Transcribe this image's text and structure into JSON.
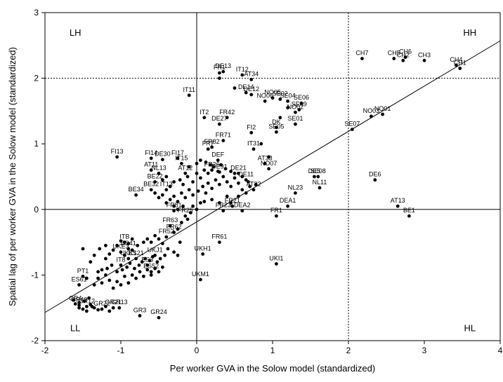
{
  "chart_data": {
    "type": "scatter",
    "xlabel": "Per worker GVA in the Solow model (standardized)",
    "ylabel": "Spatial lag of per worker GVA in the Solow model (standardized)",
    "xlim": [
      -2,
      4
    ],
    "ylim": [
      -2,
      3
    ],
    "xticks": [
      -2,
      -1,
      0,
      1,
      2,
      3,
      4
    ],
    "yticks": [
      -2,
      -1,
      0,
      1,
      2,
      3
    ],
    "grid": false,
    "reference_lines": {
      "x_solid": 0,
      "y_solid": 0,
      "x_dotted": 2,
      "y_dotted": 2
    },
    "regression_line": {
      "x": [
        -2,
        4
      ],
      "y": [
        -1.57,
        2.57
      ]
    },
    "quadrant_labels": [
      {
        "text": "LH",
        "x": -1.6,
        "y": 2.7
      },
      {
        "text": "HH",
        "x": 3.6,
        "y": 2.7
      },
      {
        "text": "LL",
        "x": -1.6,
        "y": -1.8
      },
      {
        "text": "HL",
        "x": 3.6,
        "y": -1.8
      }
    ],
    "labeled_points": [
      {
        "label": "CH7",
        "x": 2.18,
        "y": 2.3
      },
      {
        "label": "CH5",
        "x": 2.6,
        "y": 2.3
      },
      {
        "label": "CH6",
        "x": 2.75,
        "y": 2.32
      },
      {
        "label": "CH2",
        "x": 2.72,
        "y": 2.27
      },
      {
        "label": "CH3",
        "x": 3.0,
        "y": 2.27
      },
      {
        "label": "CH4",
        "x": 3.42,
        "y": 2.2
      },
      {
        "label": "CH1",
        "x": 3.47,
        "y": 2.15
      },
      {
        "label": "FR1",
        "x": 1.05,
        "y": -0.1
      },
      {
        "label": "UKI1",
        "x": 1.05,
        "y": -0.83
      },
      {
        "label": "BE1",
        "x": 2.8,
        "y": -0.1
      },
      {
        "label": "AT13",
        "x": 2.65,
        "y": 0.05
      },
      {
        "label": "DE6",
        "x": 2.35,
        "y": 0.45
      },
      {
        "label": "NO01",
        "x": 2.45,
        "y": 1.45
      },
      {
        "label": "NO03",
        "x": 2.3,
        "y": 1.42
      },
      {
        "label": "SE07",
        "x": 2.05,
        "y": 1.22
      },
      {
        "label": "NL23",
        "x": 1.3,
        "y": 0.25
      },
      {
        "label": "NL11",
        "x": 1.62,
        "y": 0.33
      },
      {
        "label": "DE5",
        "x": 1.55,
        "y": 0.5
      },
      {
        "label": "SE08",
        "x": 1.6,
        "y": 0.5
      },
      {
        "label": "DEA1",
        "x": 1.2,
        "y": 0.05
      },
      {
        "label": "DEA2",
        "x": 0.6,
        "y": -0.02
      },
      {
        "label": "FR23",
        "x": 0.35,
        "y": -0.02
      },
      {
        "label": "FR21",
        "x": 0.47,
        "y": 0.05
      },
      {
        "label": "FR61",
        "x": 0.3,
        "y": -0.5
      },
      {
        "label": "UKH1",
        "x": 0.08,
        "y": -0.68
      },
      {
        "label": "UKM1",
        "x": 0.05,
        "y": -1.07
      },
      {
        "label": "GR3",
        "x": -0.75,
        "y": -1.62
      },
      {
        "label": "GR24",
        "x": -0.5,
        "y": -1.65
      },
      {
        "label": "GR13",
        "x": -1.02,
        "y": -1.5
      },
      {
        "label": "GR22",
        "x": -1.25,
        "y": -1.52
      },
      {
        "label": "GR21",
        "x": -1.1,
        "y": -1.5
      },
      {
        "label": "GR4",
        "x": -1.6,
        "y": -1.44
      },
      {
        "label": "GR43",
        "x": -1.55,
        "y": -1.46
      },
      {
        "label": "GR12",
        "x": -1.45,
        "y": -1.48
      },
      {
        "label": "ES61",
        "x": -1.55,
        "y": -1.15
      },
      {
        "label": "PT1",
        "x": -1.5,
        "y": -1.02
      },
      {
        "label": "IT8",
        "x": -1.0,
        "y": -0.85
      },
      {
        "label": "ITB",
        "x": -0.95,
        "y": -0.5
      },
      {
        "label": "ES41",
        "x": -0.9,
        "y": -0.6
      },
      {
        "label": "UKE3",
        "x": -1.0,
        "y": -0.65
      },
      {
        "label": "FR52",
        "x": -0.4,
        "y": -0.42
      },
      {
        "label": "FR62",
        "x": -0.3,
        "y": -0.35
      },
      {
        "label": "FR63",
        "x": -0.35,
        "y": -0.25
      },
      {
        "label": "FR81",
        "x": -0.3,
        "y": -0.02
      },
      {
        "label": "FR25",
        "x": -0.15,
        "y": -0.1
      },
      {
        "label": "BE34",
        "x": -0.8,
        "y": 0.22
      },
      {
        "label": "BE32",
        "x": -0.6,
        "y": 0.3
      },
      {
        "label": "BE22",
        "x": -0.55,
        "y": 0.42
      },
      {
        "label": "NL13",
        "x": -0.5,
        "y": 0.55
      },
      {
        "label": "AT11",
        "x": -0.6,
        "y": 0.6
      },
      {
        "label": "AT12",
        "x": -0.15,
        "y": 0.55
      },
      {
        "label": "FI13",
        "x": -1.05,
        "y": 0.8
      },
      {
        "label": "FI14",
        "x": -0.6,
        "y": 0.78
      },
      {
        "label": "DE30",
        "x": -0.45,
        "y": 0.76
      },
      {
        "label": "FI17",
        "x": -0.25,
        "y": 0.78
      },
      {
        "label": "IT15",
        "x": -0.2,
        "y": 0.7
      },
      {
        "label": "IT13",
        "x": -0.4,
        "y": 0.3
      },
      {
        "label": "IT11",
        "x": -0.1,
        "y": 1.74
      },
      {
        "label": "IT2",
        "x": 0.1,
        "y": 1.4
      },
      {
        "label": "FR42",
        "x": 0.4,
        "y": 1.4
      },
      {
        "label": "DE27",
        "x": 0.3,
        "y": 1.3
      },
      {
        "label": "FR71",
        "x": 0.35,
        "y": 1.05
      },
      {
        "label": "FR82",
        "x": 0.2,
        "y": 0.95
      },
      {
        "label": "FR7",
        "x": 0.15,
        "y": 0.92
      },
      {
        "label": "DEF",
        "x": 0.28,
        "y": 0.75
      },
      {
        "label": "DE91",
        "x": 0.3,
        "y": 0.57
      },
      {
        "label": "FR26",
        "x": 0.2,
        "y": 0.6
      },
      {
        "label": "DE13",
        "x": 0.35,
        "y": 2.1
      },
      {
        "label": "FR1",
        "x": 0.3,
        "y": 2.08
      },
      {
        "label": "IT12",
        "x": 0.6,
        "y": 2.05
      },
      {
        "label": "AT34",
        "x": 0.72,
        "y": 1.98
      },
      {
        "label": "DE14",
        "x": 0.65,
        "y": 1.78
      },
      {
        "label": "DE12",
        "x": 0.72,
        "y": 1.75
      },
      {
        "label": "NO06",
        "x": 0.9,
        "y": 1.65
      },
      {
        "label": "NO05",
        "x": 1.0,
        "y": 1.7
      },
      {
        "label": "SE02",
        "x": 1.1,
        "y": 1.68
      },
      {
        "label": "SE04",
        "x": 1.2,
        "y": 1.65
      },
      {
        "label": "SE06",
        "x": 1.38,
        "y": 1.62
      },
      {
        "label": "SE09",
        "x": 1.35,
        "y": 1.52
      },
      {
        "label": "NO02",
        "x": 1.3,
        "y": 1.48
      },
      {
        "label": "SE01",
        "x": 1.3,
        "y": 1.3
      },
      {
        "label": "DK",
        "x": 1.05,
        "y": 1.25
      },
      {
        "label": "SE05",
        "x": 1.05,
        "y": 1.18
      },
      {
        "label": "FI2",
        "x": 0.72,
        "y": 1.17
      },
      {
        "label": "IT31",
        "x": 0.75,
        "y": 0.92
      },
      {
        "label": "AT33",
        "x": 0.9,
        "y": 0.7
      },
      {
        "label": "NO07",
        "x": 0.95,
        "y": 0.62
      },
      {
        "label": "DE11",
        "x": 0.65,
        "y": 0.45
      },
      {
        "label": "DE21",
        "x": 0.55,
        "y": 0.55
      },
      {
        "label": "AT32",
        "x": 0.75,
        "y": 0.3
      },
      {
        "label": "UKJ1",
        "x": -0.55,
        "y": -0.7
      },
      {
        "label": "UKK1",
        "x": -0.9,
        "y": -0.75
      },
      {
        "label": "ES21",
        "x": -0.8,
        "y": -0.75
      },
      {
        "label": "ES3",
        "x": -0.65,
        "y": -0.85
      },
      {
        "label": "ES52",
        "x": -0.6,
        "y": -0.95
      }
    ],
    "unlabeled_points": [
      [
        -1.55,
        -1.5
      ],
      [
        -1.5,
        -1.52
      ],
      [
        -1.45,
        -1.55
      ],
      [
        -1.4,
        -1.45
      ],
      [
        -1.35,
        -1.5
      ],
      [
        -1.3,
        -1.53
      ],
      [
        -1.2,
        -1.48
      ],
      [
        -1.15,
        -1.55
      ],
      [
        -1.55,
        -1.42
      ],
      [
        -1.62,
        -1.38
      ],
      [
        -1.48,
        -1.4
      ],
      [
        -1.42,
        -1.35
      ],
      [
        -1.38,
        -1.48
      ],
      [
        -1.45,
        -1.05
      ],
      [
        -1.35,
        -1.15
      ],
      [
        -1.3,
        -1.05
      ],
      [
        -1.25,
        -1.12
      ],
      [
        -1.2,
        -1.0
      ],
      [
        -1.15,
        -1.08
      ],
      [
        -1.1,
        -1.2
      ],
      [
        -1.05,
        -1.1
      ],
      [
        -1.0,
        -1.15
      ],
      [
        -0.95,
        -1.02
      ],
      [
        -0.9,
        -1.12
      ],
      [
        -0.85,
        -1.0
      ],
      [
        -0.8,
        -1.05
      ],
      [
        -0.75,
        -0.95
      ],
      [
        -0.7,
        -1.02
      ],
      [
        -0.65,
        -0.92
      ],
      [
        -0.6,
        -1.0
      ],
      [
        -0.55,
        -0.9
      ],
      [
        -0.5,
        -0.95
      ],
      [
        -0.45,
        -0.88
      ],
      [
        -1.3,
        -0.95
      ],
      [
        -1.25,
        -0.92
      ],
      [
        -1.18,
        -0.9
      ],
      [
        -1.12,
        -0.85
      ],
      [
        -1.05,
        -0.95
      ],
      [
        -0.98,
        -0.92
      ],
      [
        -0.92,
        -0.88
      ],
      [
        -0.88,
        -0.82
      ],
      [
        -0.82,
        -0.9
      ],
      [
        -0.76,
        -0.85
      ],
      [
        -0.72,
        -0.8
      ],
      [
        -0.68,
        -0.75
      ],
      [
        -0.62,
        -0.78
      ],
      [
        -0.58,
        -0.72
      ],
      [
        -0.52,
        -0.8
      ],
      [
        -0.48,
        -0.75
      ],
      [
        -0.42,
        -0.7
      ],
      [
        -1.28,
        -0.6
      ],
      [
        -1.2,
        -0.55
      ],
      [
        -1.1,
        -0.62
      ],
      [
        -1.05,
        -0.55
      ],
      [
        -1.0,
        -0.48
      ],
      [
        -0.9,
        -0.52
      ],
      [
        -0.85,
        -0.45
      ],
      [
        -0.78,
        -0.55
      ],
      [
        -0.7,
        -0.5
      ],
      [
        -0.65,
        -0.45
      ],
      [
        -0.6,
        -0.5
      ],
      [
        -0.55,
        -0.4
      ],
      [
        -0.5,
        -0.45
      ],
      [
        -0.45,
        -0.52
      ],
      [
        -0.38,
        -0.6
      ],
      [
        -0.3,
        -0.65
      ],
      [
        -0.25,
        -0.7
      ],
      [
        -0.22,
        -0.5
      ],
      [
        -0.25,
        -0.3
      ],
      [
        -0.2,
        -0.2
      ],
      [
        -0.12,
        -0.15
      ],
      [
        -0.08,
        -0.05
      ],
      [
        -0.05,
        0.05
      ],
      [
        0.0,
        0.0
      ],
      [
        0.05,
        0.1
      ],
      [
        -0.4,
        0.1
      ],
      [
        -0.35,
        0.15
      ],
      [
        -0.3,
        0.2
      ],
      [
        -0.25,
        0.12
      ],
      [
        -0.2,
        0.25
      ],
      [
        -0.15,
        0.18
      ],
      [
        -0.1,
        0.3
      ],
      [
        -0.05,
        0.22
      ],
      [
        0.02,
        0.28
      ],
      [
        0.08,
        0.35
      ],
      [
        0.12,
        0.25
      ],
      [
        0.15,
        0.4
      ],
      [
        0.2,
        0.32
      ],
      [
        0.25,
        0.45
      ],
      [
        0.3,
        0.38
      ],
      [
        0.35,
        0.5
      ],
      [
        0.4,
        0.42
      ],
      [
        0.45,
        0.35
      ],
      [
        0.5,
        0.48
      ],
      [
        0.55,
        0.4
      ],
      [
        -0.35,
        0.35
      ],
      [
        -0.3,
        0.42
      ],
      [
        -0.22,
        0.45
      ],
      [
        -0.18,
        0.38
      ],
      [
        -0.12,
        0.5
      ],
      [
        -0.05,
        0.42
      ],
      [
        0.0,
        0.55
      ],
      [
        0.05,
        0.48
      ],
      [
        0.1,
        0.6
      ],
      [
        0.15,
        0.55
      ],
      [
        0.22,
        0.65
      ],
      [
        0.28,
        0.58
      ],
      [
        0.32,
        0.68
      ],
      [
        0.38,
        0.62
      ],
      [
        0.45,
        0.58
      ],
      [
        0.5,
        0.55
      ],
      [
        0.6,
        0.5
      ],
      [
        0.68,
        0.42
      ],
      [
        0.78,
        0.38
      ],
      [
        -0.45,
        0.45
      ],
      [
        -0.4,
        0.5
      ],
      [
        -0.55,
        0.25
      ],
      [
        -0.5,
        0.18
      ],
      [
        -0.45,
        0.22
      ],
      [
        -0.3,
        0.05
      ],
      [
        -0.25,
        0.0
      ],
      [
        -0.18,
        0.05
      ],
      [
        0.1,
        0.12
      ],
      [
        0.2,
        0.15
      ],
      [
        0.3,
        0.1
      ],
      [
        0.4,
        0.2
      ],
      [
        0.45,
        0.1
      ],
      [
        0.55,
        0.2
      ],
      [
        0.6,
        0.3
      ],
      [
        0.65,
        0.25
      ],
      [
        0.7,
        0.35
      ],
      [
        -0.1,
        0.65
      ],
      [
        0.0,
        0.7
      ],
      [
        0.05,
        0.75
      ],
      [
        0.12,
        0.72
      ],
      [
        0.18,
        0.68
      ],
      [
        1.1,
        1.4
      ],
      [
        1.2,
        1.55
      ],
      [
        0.85,
        1.0
      ],
      [
        0.95,
        0.8
      ],
      [
        0.3,
        2.0
      ],
      [
        0.5,
        1.85
      ],
      [
        -1.5,
        -0.6
      ],
      [
        -1.4,
        -0.8
      ],
      [
        -1.35,
        -0.7
      ],
      [
        -1.2,
        -0.75
      ],
      [
        -1.15,
        -0.68
      ],
      [
        -0.95,
        -0.7
      ],
      [
        -0.85,
        -0.62
      ]
    ]
  }
}
